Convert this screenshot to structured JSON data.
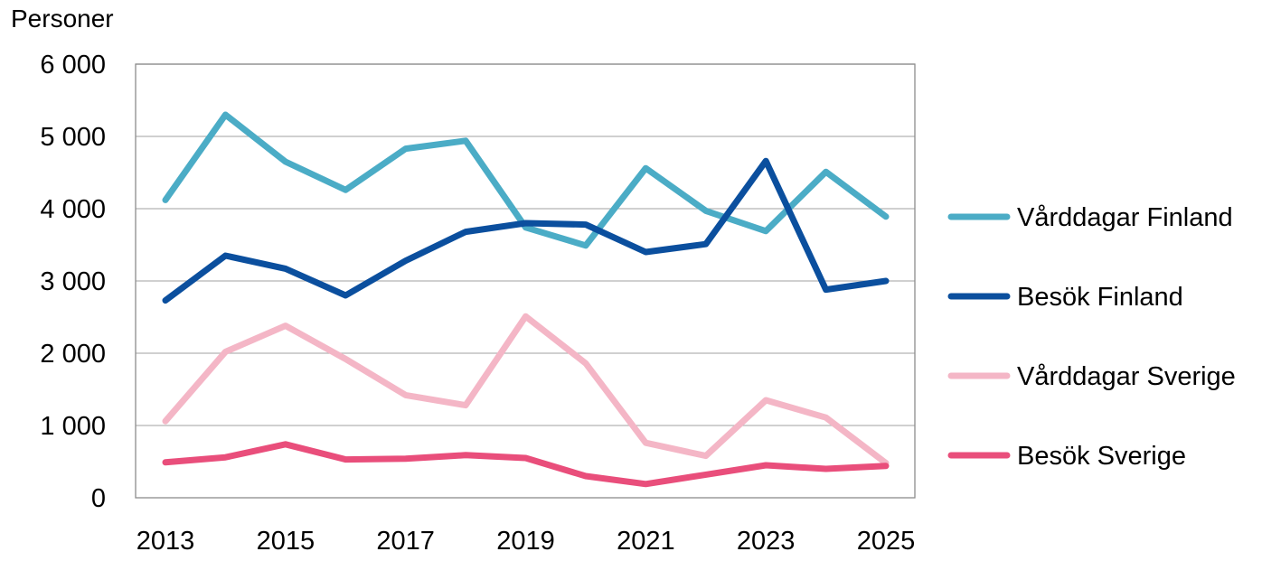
{
  "chart_data": {
    "type": "line",
    "ylabel": "Personer",
    "xlabel": "",
    "ylim": [
      0,
      6000
    ],
    "yticks": [
      0,
      1000,
      2000,
      3000,
      4000,
      5000,
      6000
    ],
    "ytick_labels": [
      "0",
      "1 000",
      "2 000",
      "3 000",
      "4 000",
      "5 000",
      "6 000"
    ],
    "x": [
      2013,
      2014,
      2015,
      2016,
      2017,
      2018,
      2019,
      2020,
      2021,
      2022,
      2023,
      2024,
      2025
    ],
    "xtick_labels": [
      "2013",
      "2015",
      "2017",
      "2019",
      "2021",
      "2023",
      "2025"
    ],
    "grid": "horizontal",
    "legend_position": "right",
    "series": [
      {
        "name": "Vårddagar Finland",
        "color": "#4bacc6",
        "values": [
          4120,
          5300,
          4650,
          4260,
          4830,
          4940,
          3740,
          3490,
          4560,
          3970,
          3690,
          4510,
          3890
        ]
      },
      {
        "name": "Besök Finland",
        "color": "#0b4f9e",
        "values": [
          2730,
          3350,
          3170,
          2800,
          3280,
          3680,
          3800,
          3780,
          3400,
          3510,
          4660,
          2880,
          3000
        ]
      },
      {
        "name": "Vårddagar Sverige",
        "color": "#f4b6c6",
        "values": [
          1060,
          2020,
          2380,
          1920,
          1420,
          1280,
          2510,
          1860,
          760,
          580,
          1350,
          1110,
          480
        ]
      },
      {
        "name": "Besök Sverige",
        "color": "#e94e7b",
        "values": [
          490,
          560,
          740,
          530,
          540,
          590,
          550,
          300,
          190,
          320,
          450,
          400,
          440
        ]
      }
    ]
  }
}
